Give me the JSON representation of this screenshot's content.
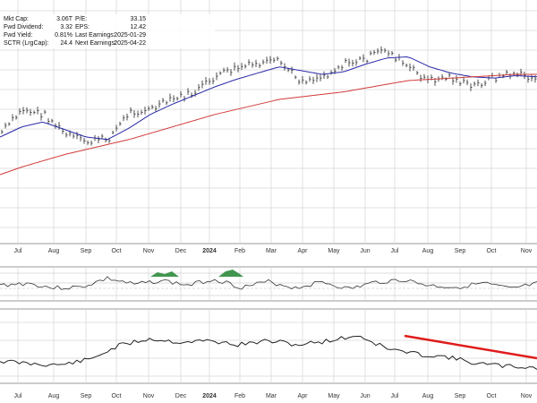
{
  "stats": {
    "col1": [
      {
        "label": "Mkt Cap:",
        "value": "3.06T"
      },
      {
        "label": "Fwd Dividend:",
        "value": "3.32"
      },
      {
        "label": "Fwd Yield:",
        "value": "0.81%"
      },
      {
        "label": "SCTR (LrgCap):",
        "value": "24.4"
      }
    ],
    "col2": [
      {
        "label": "P/E:",
        "value": "33.15"
      },
      {
        "label": "EPS:",
        "value": "12.42"
      },
      {
        "label": "Last Earnings:",
        "value": "2025-01-29"
      },
      {
        "label": "Next Earnings:",
        "value": "2025-04-22"
      }
    ]
  },
  "chart_data": {
    "type": "line",
    "x_labels": [
      "Jul",
      "Aug",
      "Sep",
      "Oct",
      "Nov",
      "Dec",
      "2024",
      "Feb",
      "Mar",
      "Apr",
      "May",
      "Jun",
      "Jul",
      "Aug",
      "Sep",
      "Oct",
      "Nov"
    ],
    "grid": true,
    "colors": {
      "price": "#222222",
      "ma50": "#2a2aa8",
      "ma200": "#d23a3a",
      "trendline": "#e01b1b",
      "rsi_fill": "#2e8b3d",
      "grid": "#d6d6d6"
    },
    "price": [
      34,
      52,
      48,
      32,
      26,
      29,
      50,
      52,
      60,
      65,
      78,
      85,
      88,
      90,
      75,
      78,
      88,
      92,
      100,
      86,
      75,
      78,
      70,
      77,
      81,
      76
    ],
    "ma50": [
      30,
      38,
      42,
      36,
      30,
      28,
      37,
      48,
      56,
      63,
      70,
      76,
      81,
      86,
      83,
      80,
      82,
      88,
      93,
      94,
      86,
      81,
      78,
      77,
      79,
      78
    ],
    "ma200": [
      0,
      6,
      11,
      16,
      20,
      24,
      28,
      33,
      38,
      43,
      48,
      52,
      56,
      60,
      62,
      64,
      66,
      69,
      72,
      75,
      76,
      77,
      78,
      79,
      80,
      80
    ],
    "rsi": [
      46,
      52,
      38,
      40,
      66,
      48,
      60,
      46,
      64,
      40,
      56,
      38,
      56,
      35,
      55,
      62,
      45,
      40,
      52,
      35,
      50
    ],
    "relative_strength": [
      12,
      8,
      6,
      14,
      35,
      45,
      40,
      42,
      36,
      42,
      36,
      42,
      50,
      30,
      22,
      18,
      8,
      4,
      2
    ]
  }
}
